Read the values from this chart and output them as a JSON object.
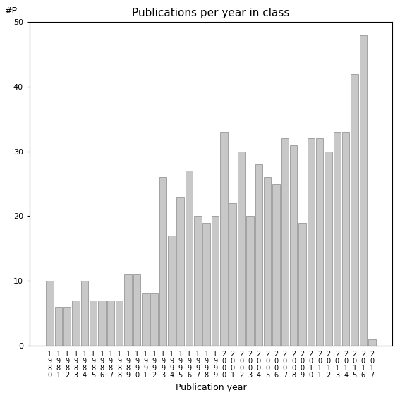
{
  "title": "Publications per year in class",
  "xlabel": "Publication year",
  "ylabel": "#P",
  "years": [
    "1980",
    "1981",
    "1982",
    "1983",
    "1984",
    "1985",
    "1986",
    "1987",
    "1988",
    "1989",
    "1990",
    "1991",
    "1992",
    "1993",
    "1994",
    "1995",
    "1996",
    "1997",
    "1998",
    "1999",
    "2000",
    "2001",
    "2002",
    "2003",
    "2004",
    "2005",
    "2006",
    "2007",
    "2008",
    "2009",
    "2010",
    "2011",
    "2012",
    "2013",
    "2014",
    "2015",
    "2016",
    "2017"
  ],
  "values": [
    10,
    6,
    6,
    7,
    10,
    7,
    7,
    7,
    7,
    11,
    11,
    8,
    8,
    26,
    17,
    23,
    27,
    20,
    19,
    20,
    33,
    22,
    30,
    20,
    28,
    26,
    25,
    32,
    31,
    19,
    32,
    32,
    30,
    33,
    33,
    42,
    48,
    1
  ],
  "bar_color": "#c8c8c8",
  "bar_edge_color": "#888888",
  "ylim": [
    0,
    50
  ],
  "yticks": [
    0,
    10,
    20,
    30,
    40,
    50
  ],
  "background_color": "#ffffff",
  "fig_width": 5.67,
  "fig_height": 5.67,
  "dpi": 100,
  "title_fontsize": 11,
  "axis_label_fontsize": 9,
  "tick_label_fontsize": 7
}
